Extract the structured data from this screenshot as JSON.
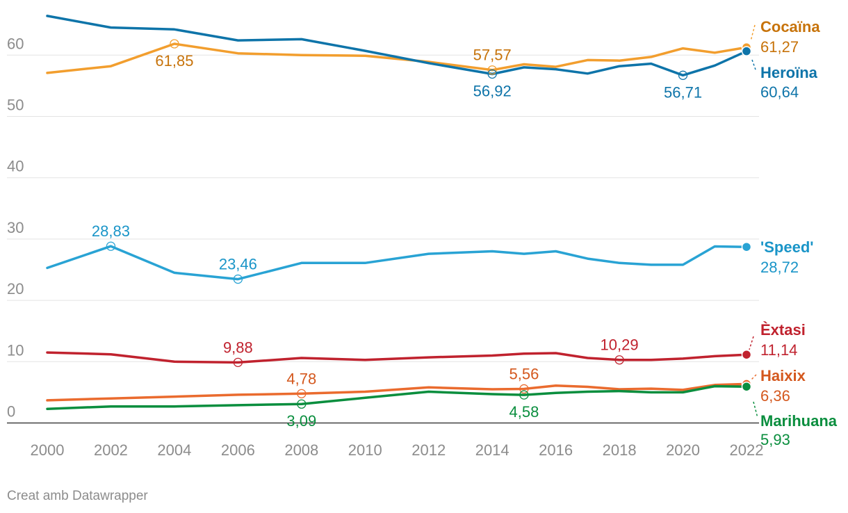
{
  "chart_data": {
    "type": "line",
    "title": "",
    "xlabel": "",
    "ylabel": "",
    "ylim": [
      0,
      68
    ],
    "y_ticks": [
      "0",
      "10",
      "20",
      "30",
      "40",
      "50",
      "60"
    ],
    "x_ticks": [
      "2000",
      "2002",
      "2004",
      "2006",
      "2008",
      "2010",
      "2012",
      "2014",
      "2016",
      "2018",
      "2020",
      "2022"
    ],
    "series": [
      {
        "name": "Cocaïna",
        "value_label": "61,27",
        "color": "#f29e2e",
        "text_color": "#c7730a",
        "x": [
          2000,
          2002,
          2004,
          2006,
          2008,
          2010,
          2012,
          2014,
          2015,
          2016,
          2017,
          2018,
          2019,
          2020,
          2021,
          2022
        ],
        "y": [
          57.1,
          58.2,
          61.85,
          60.3,
          60.0,
          59.9,
          58.9,
          57.57,
          58.5,
          58.1,
          59.2,
          59.1,
          59.7,
          61.1,
          60.4,
          61.27
        ],
        "labels": [
          {
            "x": 2004,
            "y": 61.85,
            "text": "61,85",
            "pos": "below"
          },
          {
            "x": 2014,
            "y": 57.57,
            "text": "57,57",
            "pos": "above"
          }
        ]
      },
      {
        "name": "Heroïna",
        "value_label": "60,64",
        "color": "#0e74a9",
        "text_color": "#0e74a9",
        "x": [
          2000,
          2002,
          2004,
          2006,
          2008,
          2010,
          2012,
          2014,
          2015,
          2016,
          2017,
          2018,
          2019,
          2020,
          2021,
          2022
        ],
        "y": [
          66.4,
          64.5,
          64.2,
          62.4,
          62.6,
          60.7,
          58.7,
          56.92,
          58.0,
          57.7,
          57.0,
          58.2,
          58.6,
          56.71,
          58.3,
          60.64
        ],
        "labels": [
          {
            "x": 2014,
            "y": 56.92,
            "text": "56,92",
            "pos": "below"
          },
          {
            "x": 2020,
            "y": 56.71,
            "text": "56,71",
            "pos": "below"
          }
        ]
      },
      {
        "name": "'Speed'",
        "value_label": "28,72",
        "color": "#29a3d4",
        "text_color": "#1a95c8",
        "x": [
          2000,
          2002,
          2004,
          2006,
          2008,
          2010,
          2012,
          2014,
          2015,
          2016,
          2017,
          2018,
          2019,
          2020,
          2021,
          2022
        ],
        "y": [
          25.3,
          28.83,
          24.5,
          23.46,
          26.1,
          26.1,
          27.6,
          28.0,
          27.6,
          28.0,
          26.8,
          26.1,
          25.8,
          25.8,
          28.8,
          28.72
        ],
        "labels": [
          {
            "x": 2002,
            "y": 28.83,
            "text": "28,83",
            "pos": "above"
          },
          {
            "x": 2006,
            "y": 23.46,
            "text": "23,46",
            "pos": "above"
          }
        ]
      },
      {
        "name": "Èxtasi",
        "value_label": "11,14",
        "color": "#c0222e",
        "text_color": "#c0222e",
        "x": [
          2000,
          2002,
          2004,
          2006,
          2008,
          2010,
          2012,
          2014,
          2015,
          2016,
          2017,
          2018,
          2019,
          2020,
          2021,
          2022
        ],
        "y": [
          11.5,
          11.2,
          10.0,
          9.88,
          10.6,
          10.3,
          10.7,
          11.0,
          11.3,
          11.4,
          10.6,
          10.29,
          10.3,
          10.5,
          10.9,
          11.14
        ],
        "labels": [
          {
            "x": 2006,
            "y": 9.88,
            "text": "9,88",
            "pos": "above"
          },
          {
            "x": 2018,
            "y": 10.29,
            "text": "10,29",
            "pos": "above"
          }
        ]
      },
      {
        "name": "Haixix",
        "value_label": "6,36",
        "color": "#ea6b2e",
        "text_color": "#d4581e",
        "x": [
          2000,
          2002,
          2004,
          2006,
          2008,
          2010,
          2012,
          2014,
          2015,
          2016,
          2017,
          2018,
          2019,
          2020,
          2021,
          2022
        ],
        "y": [
          3.7,
          4.0,
          4.3,
          4.6,
          4.78,
          5.1,
          5.8,
          5.5,
          5.56,
          6.1,
          5.9,
          5.5,
          5.6,
          5.4,
          6.2,
          6.36
        ],
        "labels": [
          {
            "x": 2008,
            "y": 4.78,
            "text": "4,78",
            "pos": "above"
          },
          {
            "x": 2015,
            "y": 5.56,
            "text": "5,56",
            "pos": "above"
          }
        ]
      },
      {
        "name": "Marihuana",
        "value_label": "5,93",
        "color": "#0a8e3e",
        "text_color": "#0a8e3e",
        "x": [
          2000,
          2002,
          2004,
          2006,
          2008,
          2010,
          2012,
          2014,
          2015,
          2016,
          2017,
          2018,
          2019,
          2020,
          2021,
          2022
        ],
        "y": [
          2.3,
          2.7,
          2.7,
          2.9,
          3.09,
          4.1,
          5.1,
          4.7,
          4.58,
          4.9,
          5.1,
          5.2,
          5.0,
          5.0,
          6.0,
          5.93
        ],
        "labels": [
          {
            "x": 2008,
            "y": 3.09,
            "text": "3,09",
            "pos": "below"
          },
          {
            "x": 2015,
            "y": 4.58,
            "text": "4,58",
            "pos": "below"
          }
        ]
      }
    ],
    "credit": "Creat amb Datawrapper"
  }
}
